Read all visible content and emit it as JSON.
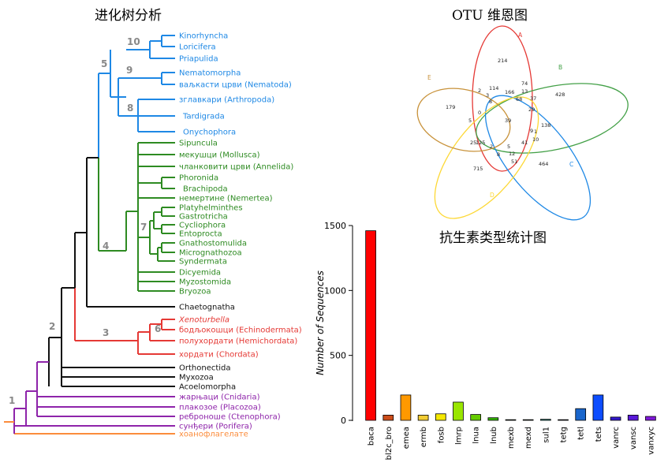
{
  "tree": {
    "title": "进化树分析",
    "colors": {
      "blue": "#1e88e5",
      "green": "#2e8b22",
      "black": "#111111",
      "red": "#e53935",
      "purple": "#8e24aa",
      "orange": "#fb8c3c"
    },
    "node_numbers": [
      "10",
      "9",
      "5",
      "8",
      "4",
      "7",
      "2",
      "3",
      "6",
      "1"
    ],
    "taxa": [
      {
        "label": "Kinorhyncha",
        "clade": "blue",
        "italic": false
      },
      {
        "label": "Loricifera",
        "clade": "blue",
        "italic": false
      },
      {
        "label": "Priapulida",
        "clade": "blue",
        "italic": false
      },
      {
        "label": "Nematomorpha",
        "clade": "blue",
        "italic": false
      },
      {
        "label": "ваљкасти црви (Nematoda)",
        "clade": "blue",
        "italic": false
      },
      {
        "label": "зглавкари (Arthropoda)",
        "clade": "blue",
        "italic": false
      },
      {
        "label": "Tardigrada",
        "clade": "blue",
        "italic": false
      },
      {
        "label": "Onychophora",
        "clade": "blue",
        "italic": false
      },
      {
        "label": "Sipuncula",
        "clade": "green",
        "italic": false
      },
      {
        "label": "мекушци (Mollusca)",
        "clade": "green",
        "italic": false
      },
      {
        "label": "чланковити црви (Annelida)",
        "clade": "green",
        "italic": false
      },
      {
        "label": "Phoronida",
        "clade": "green",
        "italic": false
      },
      {
        "label": "Brachipoda",
        "clade": "green",
        "italic": false
      },
      {
        "label": "немертине (Nemertea)",
        "clade": "green",
        "italic": false
      },
      {
        "label": "Platyhelminthes",
        "clade": "green",
        "italic": false
      },
      {
        "label": "Gastrotricha",
        "clade": "green",
        "italic": false
      },
      {
        "label": "Cycliophora",
        "clade": "green",
        "italic": false
      },
      {
        "label": "Entoprocta",
        "clade": "green",
        "italic": false
      },
      {
        "label": "Gnathostomulida",
        "clade": "green",
        "italic": false
      },
      {
        "label": "Micrognathozoa",
        "clade": "green",
        "italic": false
      },
      {
        "label": "Syndermata",
        "clade": "green",
        "italic": false
      },
      {
        "label": "Dicyemida",
        "clade": "green",
        "italic": false
      },
      {
        "label": "Myzostomida",
        "clade": "green",
        "italic": false
      },
      {
        "label": "Bryozoa",
        "clade": "green",
        "italic": false
      },
      {
        "label": "Chaetognatha",
        "clade": "black",
        "italic": false
      },
      {
        "label": "Xenoturbella",
        "clade": "red",
        "italic": true
      },
      {
        "label": "бодљокошци (Echinodermata)",
        "clade": "red",
        "italic": false
      },
      {
        "label": "полухордати (Hemichordata)",
        "clade": "red",
        "italic": false
      },
      {
        "label": "хордати (Chordata)",
        "clade": "red",
        "italic": false
      },
      {
        "label": "Orthonectida",
        "clade": "black",
        "italic": false
      },
      {
        "label": "Myxozoa",
        "clade": "black",
        "italic": false
      },
      {
        "label": "Acoelomorpha",
        "clade": "black",
        "italic": false
      },
      {
        "label": "жарњаци (Cnidaria)",
        "clade": "purple",
        "italic": false
      },
      {
        "label": "плакозое (Placozoa)",
        "clade": "purple",
        "italic": false
      },
      {
        "label": "ребронoше (Ctenophora)",
        "clade": "purple",
        "italic": false
      },
      {
        "label": "сунђери (Porifera)",
        "clade": "purple",
        "italic": false
      },
      {
        "label": "хоанофлагелате",
        "clade": "orange",
        "italic": false
      }
    ]
  },
  "venn": {
    "title": "OTU 维恩图",
    "sets": [
      {
        "name": "A",
        "color": "#e53935"
      },
      {
        "name": "B",
        "color": "#43a047"
      },
      {
        "name": "C",
        "color": "#1e88e5"
      },
      {
        "name": "D",
        "color": "#fdd835"
      },
      {
        "name": "E",
        "color": "#c8923a"
      }
    ],
    "region_values": [
      "214",
      "428",
      "464",
      "715",
      "179",
      "114",
      "166",
      "74",
      "2",
      "13",
      "3",
      "8",
      "68",
      "37",
      "29",
      "0",
      "5",
      "39",
      "25",
      "138",
      "9",
      "1",
      "10",
      "41",
      "125",
      "2",
      "5",
      "8",
      "12",
      "51"
    ]
  },
  "chart_data": {
    "type": "bar",
    "title": "抗生素类型统计图",
    "ylabel": "Number of Sequences",
    "xlabel": "",
    "ylim": [
      0,
      1500
    ],
    "yticks": [
      0,
      500,
      1000,
      1500
    ],
    "categories": [
      "baca",
      "bl2c_bro",
      "emea",
      "ermb",
      "fosb",
      "lmrp",
      "lnua",
      "lnub",
      "mexb",
      "mexd",
      "sul1",
      "tetg",
      "tetl",
      "tets",
      "vanrc",
      "vansc",
      "vanxyc"
    ],
    "values": [
      1460,
      40,
      195,
      40,
      50,
      140,
      45,
      20,
      5,
      5,
      8,
      5,
      90,
      195,
      25,
      40,
      30
    ],
    "colors": [
      "#ff0000",
      "#cc4d1a",
      "#ff9900",
      "#f2cc33",
      "#f5e800",
      "#99e600",
      "#66cc00",
      "#33b300",
      "#1f9920",
      "#1f8c4d",
      "#1a8073",
      "#1a7399",
      "#1a66cc",
      "#0d4dff",
      "#3319cc",
      "#5919d9",
      "#8019d9"
    ]
  }
}
